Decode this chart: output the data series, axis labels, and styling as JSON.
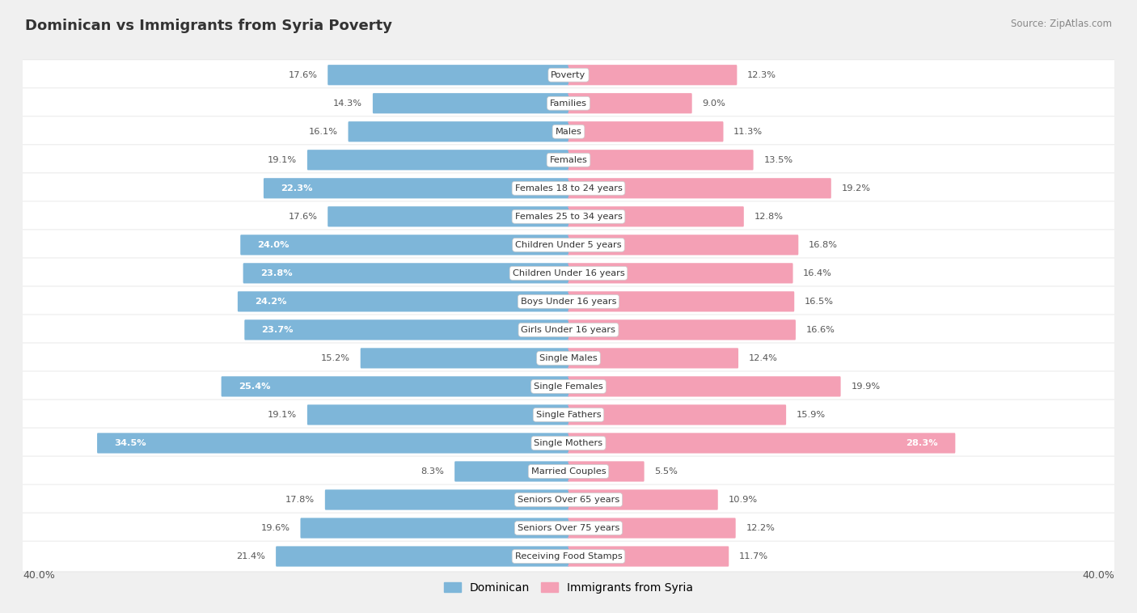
{
  "title": "Dominican vs Immigrants from Syria Poverty",
  "source": "Source: ZipAtlas.com",
  "categories": [
    "Poverty",
    "Families",
    "Males",
    "Females",
    "Females 18 to 24 years",
    "Females 25 to 34 years",
    "Children Under 5 years",
    "Children Under 16 years",
    "Boys Under 16 years",
    "Girls Under 16 years",
    "Single Males",
    "Single Females",
    "Single Fathers",
    "Single Mothers",
    "Married Couples",
    "Seniors Over 65 years",
    "Seniors Over 75 years",
    "Receiving Food Stamps"
  ],
  "dominican": [
    17.6,
    14.3,
    16.1,
    19.1,
    22.3,
    17.6,
    24.0,
    23.8,
    24.2,
    23.7,
    15.2,
    25.4,
    19.1,
    34.5,
    8.3,
    17.8,
    19.6,
    21.4
  ],
  "syria": [
    12.3,
    9.0,
    11.3,
    13.5,
    19.2,
    12.8,
    16.8,
    16.4,
    16.5,
    16.6,
    12.4,
    19.9,
    15.9,
    28.3,
    5.5,
    10.9,
    12.2,
    11.7
  ],
  "blue_color": "#7EB6D9",
  "pink_color": "#F4A0B5",
  "bg_color": "#F0F0F0",
  "row_bg_even": "#FAFAFA",
  "row_bg_odd": "#F0F0F0",
  "axis_max": 40.0,
  "legend_dominican": "Dominican",
  "legend_syria": "Immigrants from Syria",
  "dom_white_threshold": 22.0,
  "syr_white_threshold": 27.0
}
